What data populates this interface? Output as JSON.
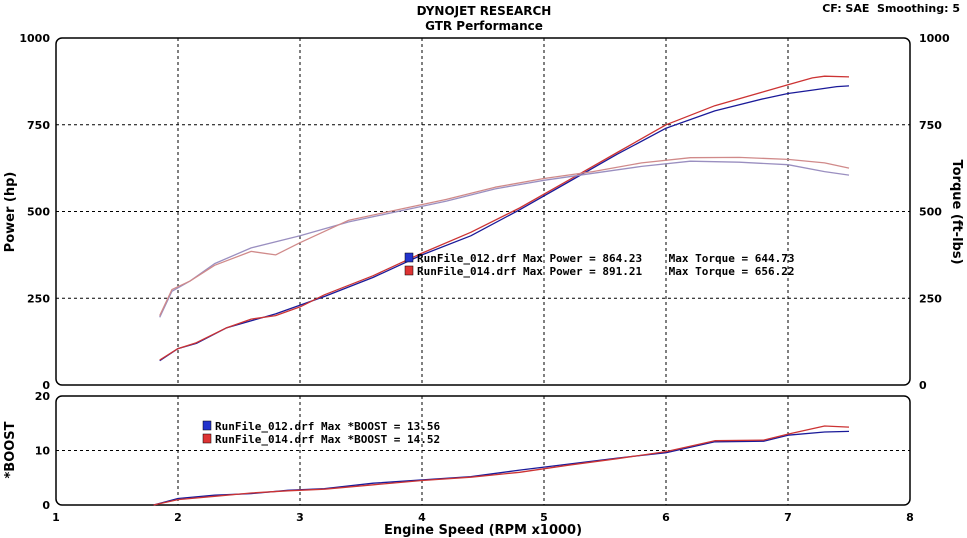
{
  "header": {
    "title": "DYNOJET RESEARCH",
    "subtitle": "GTR Performance",
    "cf_label": "CF: SAE  Smoothing: 5"
  },
  "colors": {
    "run012": "#1a1a99",
    "run014": "#cc3333",
    "run012_torque": "#9a8fc0",
    "run014_torque": "#d08a8a",
    "grid": "#000000",
    "legend_blue": "#2233cc",
    "legend_red": "#dd3333"
  },
  "legend_main": {
    "line1": "RunFile_012.drf Max Power = 864.23    Max Torque = 644.73",
    "line2": "RunFile_014.drf Max Power = 891.21    Max Torque = 656.22"
  },
  "legend_boost": {
    "line1": "RunFile_012.drf Max *BOOST = 13.56",
    "line2": "RunFile_014.drf Max *BOOST = 14.52"
  },
  "chart_data": [
    {
      "type": "line",
      "xlabel": "Engine Speed (RPM x1000)",
      "ylabel": "Power (hp)",
      "y2label": "Torque (ft-lbs)",
      "xlim": [
        1,
        8
      ],
      "ylim": [
        0,
        1000
      ],
      "y2lim": [
        0,
        1000
      ],
      "x_ticks": [
        "1",
        "2",
        "3",
        "4",
        "5",
        "6",
        "7",
        "8"
      ],
      "y_ticks": [
        "0",
        "250",
        "500",
        "750",
        "1000"
      ],
      "y2_ticks": [
        "0",
        "250",
        "500",
        "750",
        "1000"
      ],
      "grid": true,
      "series": [
        {
          "name": "RunFile_012.drf",
          "metric": "power",
          "x": [
            1.85,
            2.0,
            2.15,
            2.4,
            2.8,
            3.2,
            3.6,
            4.0,
            4.4,
            4.8,
            5.2,
            5.6,
            6.0,
            6.4,
            6.8,
            7.0,
            7.2,
            7.4,
            7.5
          ],
          "y": [
            70,
            105,
            120,
            165,
            205,
            255,
            310,
            375,
            430,
            505,
            585,
            665,
            740,
            790,
            825,
            840,
            850,
            860,
            862
          ]
        },
        {
          "name": "RunFile_014.drf",
          "metric": "power",
          "x": [
            1.85,
            2.0,
            2.15,
            2.4,
            2.6,
            2.8,
            3.0,
            3.2,
            3.6,
            4.0,
            4.4,
            4.8,
            5.2,
            5.6,
            6.0,
            6.4,
            6.8,
            7.0,
            7.2,
            7.3,
            7.5
          ],
          "y": [
            72,
            105,
            122,
            165,
            190,
            200,
            225,
            260,
            315,
            380,
            440,
            510,
            590,
            670,
            750,
            805,
            845,
            865,
            885,
            890,
            888
          ]
        },
        {
          "name": "RunFile_012.drf",
          "metric": "torque",
          "x": [
            1.85,
            1.95,
            2.1,
            2.3,
            2.6,
            3.0,
            3.4,
            3.8,
            4.2,
            4.6,
            5.0,
            5.4,
            5.8,
            6.2,
            6.6,
            7.0,
            7.3,
            7.5
          ],
          "y": [
            195,
            270,
            300,
            350,
            395,
            430,
            470,
            500,
            530,
            565,
            590,
            610,
            630,
            645,
            642,
            635,
            615,
            605
          ]
        },
        {
          "name": "RunFile_014.drf",
          "metric": "torque",
          "x": [
            1.85,
            1.95,
            2.1,
            2.3,
            2.6,
            2.8,
            3.0,
            3.4,
            3.8,
            4.2,
            4.6,
            5.0,
            5.4,
            5.8,
            6.2,
            6.6,
            7.0,
            7.3,
            7.5
          ],
          "y": [
            200,
            275,
            300,
            345,
            385,
            375,
            410,
            475,
            505,
            535,
            570,
            595,
            615,
            640,
            655,
            656,
            650,
            640,
            625
          ]
        }
      ]
    },
    {
      "type": "line",
      "xlabel": "Engine Speed (RPM x1000)",
      "ylabel": "*BOOST",
      "xlim": [
        1,
        8
      ],
      "ylim": [
        0,
        20
      ],
      "x_ticks": [
        "1",
        "2",
        "3",
        "4",
        "5",
        "6",
        "7",
        "8"
      ],
      "y_ticks": [
        "0",
        "10",
        "20"
      ],
      "grid": true,
      "series": [
        {
          "name": "RunFile_012.drf",
          "x": [
            1.8,
            2.0,
            2.3,
            2.6,
            2.9,
            3.2,
            3.6,
            4.0,
            4.4,
            4.8,
            5.2,
            5.6,
            6.0,
            6.4,
            6.8,
            7.0,
            7.3,
            7.5
          ],
          "y": [
            0,
            1.2,
            1.8,
            2.1,
            2.7,
            3.0,
            4.0,
            4.6,
            5.2,
            6.4,
            7.5,
            8.6,
            9.6,
            11.6,
            11.7,
            12.8,
            13.4,
            13.5
          ]
        },
        {
          "name": "RunFile_014.drf",
          "x": [
            1.8,
            2.0,
            2.3,
            2.6,
            2.9,
            3.2,
            3.6,
            4.0,
            4.4,
            4.8,
            5.2,
            5.6,
            6.0,
            6.4,
            6.8,
            7.0,
            7.3,
            7.5
          ],
          "y": [
            0,
            1.0,
            1.6,
            2.2,
            2.6,
            2.9,
            3.7,
            4.5,
            5.1,
            6.0,
            7.3,
            8.5,
            9.8,
            11.8,
            11.9,
            13.0,
            14.5,
            14.3
          ]
        }
      ]
    }
  ]
}
